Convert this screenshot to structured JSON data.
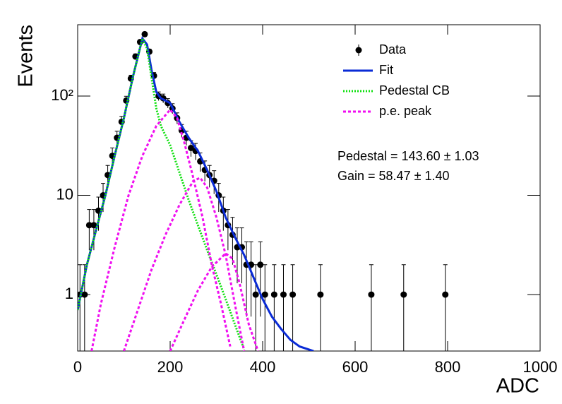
{
  "chart_data": {
    "type": "histogram-fit",
    "x_label": "ADC",
    "y_label": "Events",
    "log_y": true,
    "xlim": [
      0,
      1000
    ],
    "ylim": [
      0.27,
      523
    ],
    "xticks": [
      0,
      200,
      400,
      600,
      800,
      1000
    ],
    "yticks": [
      1,
      10,
      {
        "value": 100,
        "label": "10²"
      }
    ],
    "legend": "upper-right",
    "annotations": [
      "Pedestal = 143.60 ± 1.03",
      "Gain = 58.47 ± 1.40"
    ],
    "series": [
      {
        "name": "Data",
        "color": "#000000",
        "style": "points",
        "x": [
          5,
          15,
          25,
          35,
          45,
          55,
          65,
          75,
          85,
          95,
          105,
          115,
          125,
          135,
          145,
          155,
          165,
          175,
          185,
          195,
          205,
          215,
          225,
          235,
          245,
          255,
          265,
          275,
          285,
          295,
          305,
          315,
          325,
          335,
          345,
          355,
          365,
          375,
          385,
          395,
          405,
          425,
          445,
          465,
          525,
          635,
          705,
          795
        ],
        "values": [
          1,
          1,
          5,
          5,
          7,
          10,
          16,
          25,
          38,
          55,
          90,
          150,
          250,
          350,
          420,
          280,
          160,
          100,
          95,
          85,
          75,
          60,
          45,
          38,
          30,
          28,
          22,
          18,
          16,
          14,
          10,
          7,
          5,
          4,
          3,
          3,
          2,
          2,
          1,
          2,
          1,
          1,
          1,
          1,
          1,
          1,
          1,
          1
        ],
        "errors": [
          1,
          1,
          2.2,
          2.2,
          2.6,
          3.2,
          4,
          5,
          6.2,
          7.4,
          9.5,
          12.2,
          15.8,
          18.7,
          20.5,
          16.7,
          12.6,
          10,
          9.7,
          9.2,
          8.7,
          7.7,
          6.7,
          6.2,
          5.5,
          5.3,
          4.7,
          4.2,
          4,
          3.7,
          3.2,
          2.6,
          2.2,
          2,
          1.7,
          1.7,
          1.4,
          1.4,
          1,
          1.4,
          1,
          1,
          1,
          1,
          1,
          1,
          1,
          1
        ]
      },
      {
        "name": "Fit",
        "color": "#0a2bd6",
        "style": "solid",
        "x": [
          0,
          20,
          40,
          60,
          80,
          100,
          120,
          140,
          150,
          160,
          170,
          180,
          200,
          220,
          240,
          260,
          280,
          300,
          320,
          340,
          360,
          380,
          400,
          420,
          440,
          460,
          480,
          510
        ],
        "values": [
          0.7,
          2,
          4.5,
          10,
          25,
          60,
          160,
          380,
          330,
          180,
          110,
          95,
          85,
          55,
          38,
          28,
          18,
          11,
          6,
          3.8,
          2.5,
          1.5,
          0.9,
          0.6,
          0.45,
          0.35,
          0.3,
          0.27
        ]
      },
      {
        "name": "Pedestal CB",
        "color": "#10e010",
        "style": "dotted",
        "x": [
          0,
          20,
          40,
          60,
          80,
          100,
          120,
          140,
          150,
          160,
          170,
          180,
          200,
          220,
          240,
          260,
          280,
          300,
          320,
          340,
          360
        ],
        "values": [
          0.7,
          2,
          4.5,
          10,
          25,
          60,
          160,
          380,
          300,
          150,
          75,
          50,
          32,
          17,
          9,
          5,
          2.8,
          1.6,
          0.9,
          0.5,
          0.28
        ]
      },
      {
        "name": "p.e. peak",
        "color": "#f010f0",
        "style": "dashed",
        "x": [
          30,
          50,
          80,
          110,
          140,
          170,
          200,
          215,
          230,
          250,
          270,
          290,
          310,
          330,
          null,
          100,
          130,
          160,
          190,
          220,
          250,
          265,
          280,
          300,
          320,
          340,
          360,
          null,
          200,
          230,
          260,
          290,
          320,
          335,
          350,
          370,
          390
        ],
        "values": [
          0.27,
          0.8,
          3,
          10,
          25,
          50,
          73,
          60,
          35,
          15,
          6,
          2,
          0.8,
          0.3,
          null,
          0.27,
          0.7,
          1.8,
          4,
          8,
          14,
          15,
          12,
          6,
          2.5,
          0.8,
          0.27,
          null,
          0.27,
          0.55,
          1.1,
          1.9,
          2.6,
          2.3,
          1.3,
          0.5,
          0.27
        ]
      }
    ]
  }
}
